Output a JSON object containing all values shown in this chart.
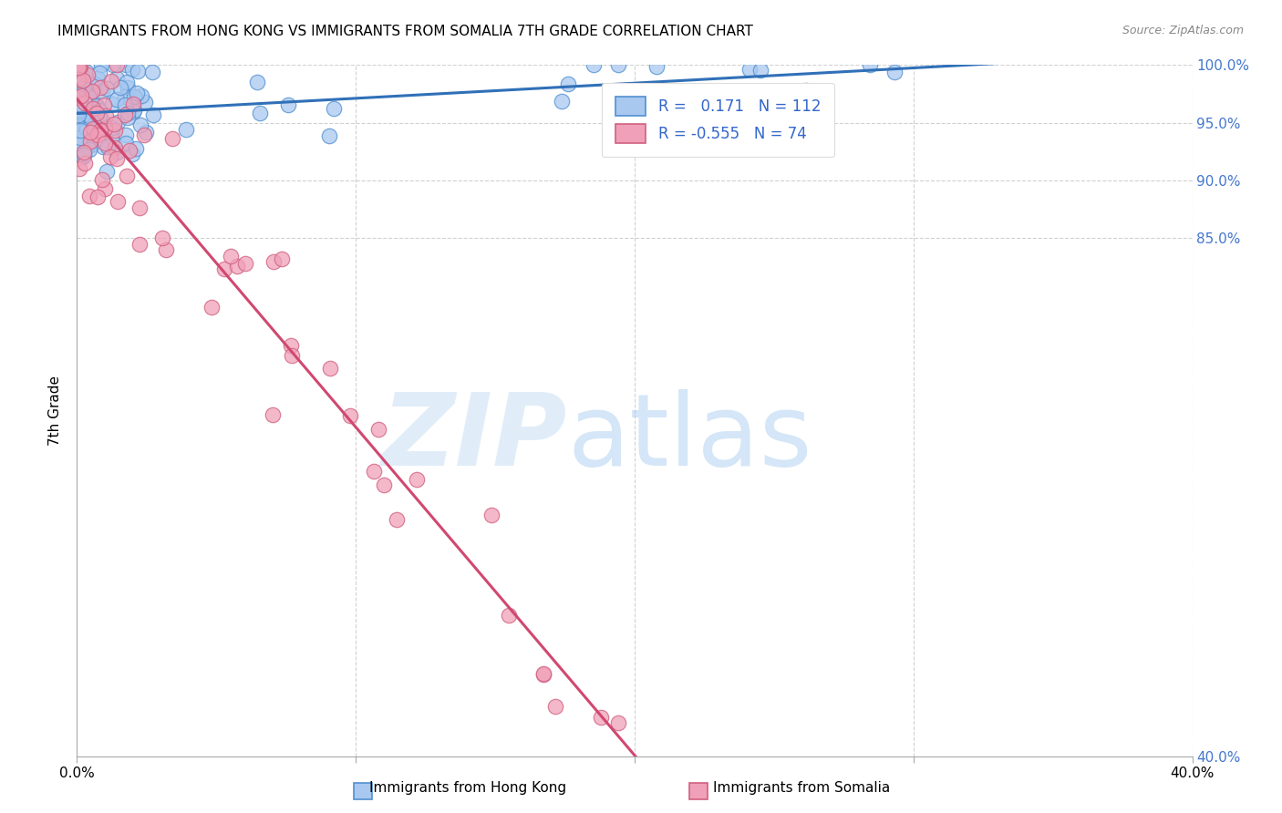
{
  "title": "IMMIGRANTS FROM HONG KONG VS IMMIGRANTS FROM SOMALIA 7TH GRADE CORRELATION CHART",
  "source": "Source: ZipAtlas.com",
  "ylabel": "7th Grade",
  "r_hk": 0.171,
  "n_hk": 112,
  "r_somalia": -0.555,
  "n_somalia": 74,
  "xmin": 0.0,
  "xmax": 40.0,
  "ymin": 40.0,
  "ymax": 100.0,
  "color_hk_fill": "#A8C8F0",
  "color_hk_edge": "#5090D0",
  "color_somalia_fill": "#F0A0B8",
  "color_somalia_edge": "#D06080",
  "color_hk_line": "#3070B8",
  "color_somalia_line": "#D04870",
  "title_fontsize": 11,
  "axis_label_color": "#4477CC",
  "grid_color": "#CCCCCC",
  "legend_label_color": "#3366CC",
  "hk_line_y0": 95.8,
  "hk_line_y1": 100.5,
  "somalia_line_y0": 97.8,
  "somalia_line_y1": 41.0
}
